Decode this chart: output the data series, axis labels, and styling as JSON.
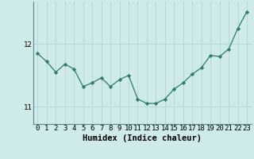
{
  "xlabel": "Humidex (Indice chaleur)",
  "x": [
    0,
    1,
    2,
    3,
    4,
    5,
    6,
    7,
    8,
    9,
    10,
    11,
    12,
    13,
    14,
    15,
    16,
    17,
    18,
    19,
    20,
    21,
    22,
    23
  ],
  "y": [
    11.85,
    11.72,
    11.55,
    11.68,
    11.6,
    11.32,
    11.38,
    11.46,
    11.32,
    11.43,
    11.5,
    11.12,
    11.05,
    11.05,
    11.12,
    11.28,
    11.38,
    11.52,
    11.62,
    11.82,
    11.8,
    11.92,
    12.25,
    12.52
  ],
  "ylim": [
    10.72,
    12.68
  ],
  "yticks": [
    11,
    12
  ],
  "xticks": [
    0,
    1,
    2,
    3,
    4,
    5,
    6,
    7,
    8,
    9,
    10,
    11,
    12,
    13,
    14,
    15,
    16,
    17,
    18,
    19,
    20,
    21,
    22,
    23
  ],
  "line_color": "#2d7d6e",
  "marker": "D",
  "marker_size": 2.2,
  "bg_color": "#ceeaea",
  "grid_color": "#b8d8d8",
  "label_fontsize": 7.5,
  "tick_fontsize": 6.5
}
